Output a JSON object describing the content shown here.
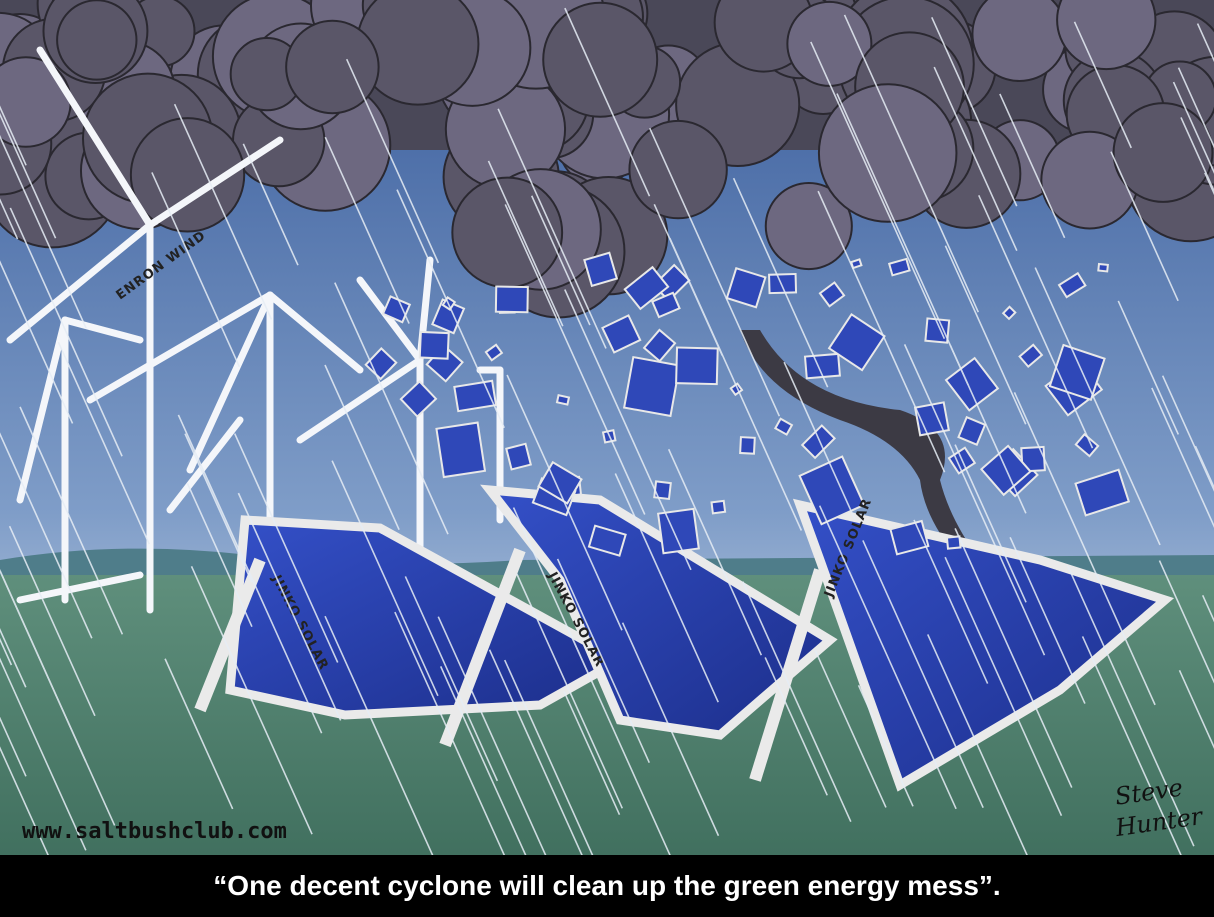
{
  "illustration": {
    "turbine_brand": "ENRON WIND",
    "panel_brands": [
      "JINKO SOLAR",
      "JINKO SOLAR",
      "JINKO SOLAR"
    ],
    "website": "www.saltbushclub.com",
    "signature": [
      "Steve",
      "Hunter"
    ]
  },
  "caption": "“One decent cyclone will clean up the green energy mess”."
}
